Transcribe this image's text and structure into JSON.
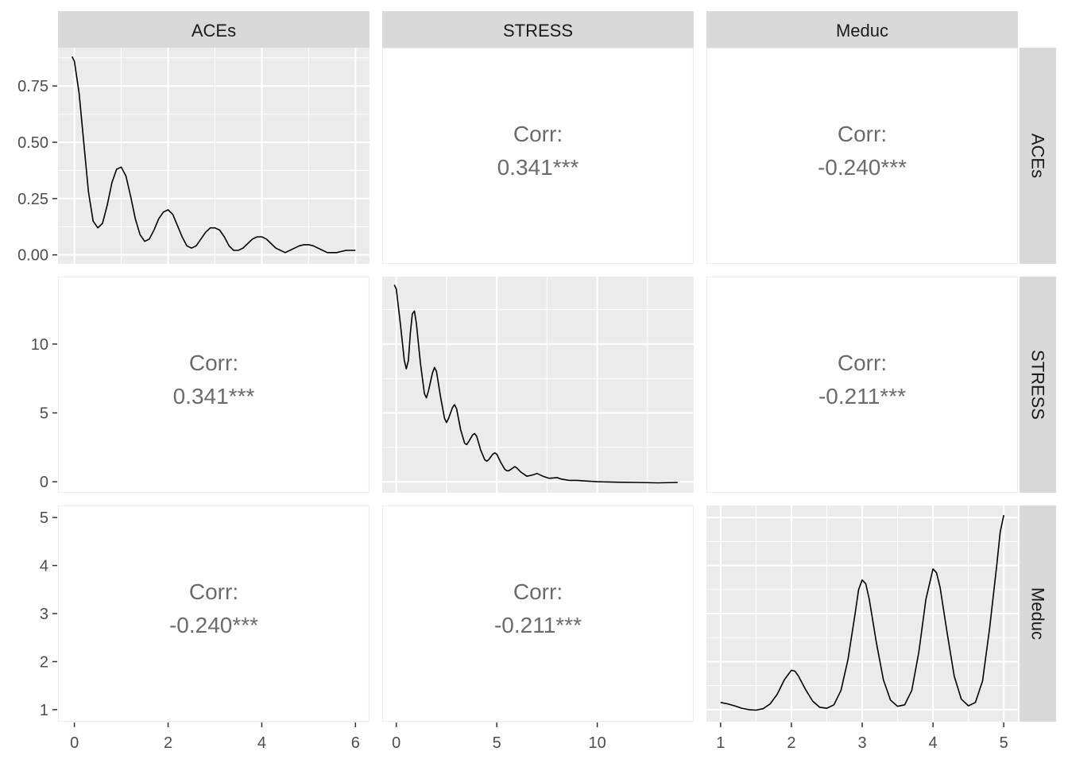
{
  "chart_data": {
    "type": "scatter-matrix",
    "variables": [
      "ACEs",
      "STRESS",
      "Meduc"
    ],
    "colors": {
      "panel_bg": "#ebebeb",
      "grid": "#ffffff",
      "strip_bg": "#d9d9d9",
      "border": "#ebebeb",
      "line": "#000000",
      "corr_text": "#6b6b6b",
      "tick_text": "#4d4d4d"
    },
    "column_strips": [
      "ACEs",
      "STRESS",
      "Meduc"
    ],
    "row_strips": [
      "ACEs",
      "STRESS",
      "Meduc"
    ],
    "x_axes": [
      {
        "ticks": [
          0,
          2,
          4,
          6
        ],
        "labels": [
          "0",
          "2",
          "4",
          "6"
        ],
        "range": [
          -0.35,
          6.3
        ]
      },
      {
        "ticks": [
          0,
          5,
          10
        ],
        "labels": [
          "0",
          "5",
          "10"
        ],
        "range": [
          -0.7,
          14.8
        ]
      },
      {
        "ticks": [
          1,
          2,
          3,
          4,
          5
        ],
        "labels": [
          "1",
          "2",
          "3",
          "4",
          "5"
        ],
        "range": [
          0.8,
          5.2
        ]
      }
    ],
    "y_axes": [
      {
        "ticks": [
          0,
          0.25,
          0.5,
          0.75
        ],
        "labels": [
          "0.00",
          "0.25",
          "0.50",
          "0.75"
        ],
        "range": [
          -0.04,
          0.92
        ]
      },
      {
        "ticks": [
          0,
          5,
          10
        ],
        "labels": [
          "0",
          "5",
          "10"
        ],
        "range": [
          -0.8,
          14.9
        ]
      },
      {
        "ticks": [
          1,
          2,
          3,
          4,
          5
        ],
        "labels": [
          "1",
          "2",
          "3",
          "4",
          "5"
        ],
        "range": [
          0.75,
          5.25
        ]
      }
    ],
    "correlations": [
      {
        "row": 0,
        "col": 1,
        "label": "Corr:",
        "value": "0.341***"
      },
      {
        "row": 0,
        "col": 2,
        "label": "Corr:",
        "value": "-0.240***"
      },
      {
        "row": 1,
        "col": 0,
        "label": "Corr:",
        "value": "0.341***"
      },
      {
        "row": 1,
        "col": 2,
        "label": "Corr:",
        "value": "-0.211***"
      },
      {
        "row": 2,
        "col": 0,
        "label": "Corr:",
        "value": "-0.240***"
      },
      {
        "row": 2,
        "col": 1,
        "label": "Corr:",
        "value": "-0.211***"
      }
    ],
    "densities": [
      {
        "variable": "ACEs",
        "points": [
          [
            -0.05,
            0.88
          ],
          [
            0.0,
            0.86
          ],
          [
            0.1,
            0.72
          ],
          [
            0.2,
            0.5
          ],
          [
            0.3,
            0.28
          ],
          [
            0.4,
            0.15
          ],
          [
            0.5,
            0.12
          ],
          [
            0.6,
            0.14
          ],
          [
            0.7,
            0.22
          ],
          [
            0.8,
            0.32
          ],
          [
            0.9,
            0.38
          ],
          [
            1.0,
            0.39
          ],
          [
            1.1,
            0.35
          ],
          [
            1.2,
            0.26
          ],
          [
            1.3,
            0.16
          ],
          [
            1.4,
            0.09
          ],
          [
            1.5,
            0.06
          ],
          [
            1.6,
            0.07
          ],
          [
            1.7,
            0.11
          ],
          [
            1.8,
            0.16
          ],
          [
            1.9,
            0.19
          ],
          [
            2.0,
            0.2
          ],
          [
            2.1,
            0.18
          ],
          [
            2.2,
            0.13
          ],
          [
            2.3,
            0.08
          ],
          [
            2.4,
            0.04
          ],
          [
            2.5,
            0.03
          ],
          [
            2.6,
            0.04
          ],
          [
            2.7,
            0.07
          ],
          [
            2.8,
            0.1
          ],
          [
            2.9,
            0.12
          ],
          [
            3.0,
            0.12
          ],
          [
            3.1,
            0.11
          ],
          [
            3.2,
            0.08
          ],
          [
            3.3,
            0.04
          ],
          [
            3.4,
            0.02
          ],
          [
            3.5,
            0.02
          ],
          [
            3.6,
            0.03
          ],
          [
            3.7,
            0.05
          ],
          [
            3.8,
            0.07
          ],
          [
            3.9,
            0.08
          ],
          [
            4.0,
            0.08
          ],
          [
            4.1,
            0.07
          ],
          [
            4.2,
            0.05
          ],
          [
            4.3,
            0.03
          ],
          [
            4.4,
            0.02
          ],
          [
            4.5,
            0.01
          ],
          [
            4.6,
            0.02
          ],
          [
            4.7,
            0.03
          ],
          [
            4.8,
            0.04
          ],
          [
            4.9,
            0.045
          ],
          [
            5.0,
            0.045
          ],
          [
            5.1,
            0.04
          ],
          [
            5.2,
            0.03
          ],
          [
            5.3,
            0.02
          ],
          [
            5.4,
            0.01
          ],
          [
            5.5,
            0.01
          ],
          [
            5.6,
            0.01
          ],
          [
            5.7,
            0.015
          ],
          [
            5.8,
            0.02
          ],
          [
            5.9,
            0.02
          ],
          [
            6.0,
            0.02
          ]
        ]
      },
      {
        "variable": "STRESS",
        "points": [
          [
            -0.1,
            14.3
          ],
          [
            0.0,
            14.0
          ],
          [
            0.2,
            11.5
          ],
          [
            0.4,
            8.8
          ],
          [
            0.5,
            8.2
          ],
          [
            0.6,
            8.8
          ],
          [
            0.7,
            10.8
          ],
          [
            0.8,
            12.2
          ],
          [
            0.9,
            12.4
          ],
          [
            1.0,
            11.5
          ],
          [
            1.2,
            8.6
          ],
          [
            1.4,
            6.4
          ],
          [
            1.5,
            6.1
          ],
          [
            1.6,
            6.6
          ],
          [
            1.8,
            7.9
          ],
          [
            1.9,
            8.3
          ],
          [
            2.0,
            8.0
          ],
          [
            2.2,
            6.2
          ],
          [
            2.4,
            4.6
          ],
          [
            2.5,
            4.3
          ],
          [
            2.6,
            4.6
          ],
          [
            2.8,
            5.4
          ],
          [
            2.9,
            5.6
          ],
          [
            3.0,
            5.3
          ],
          [
            3.2,
            3.8
          ],
          [
            3.4,
            2.8
          ],
          [
            3.5,
            2.7
          ],
          [
            3.6,
            2.9
          ],
          [
            3.8,
            3.4
          ],
          [
            3.9,
            3.5
          ],
          [
            4.0,
            3.3
          ],
          [
            4.2,
            2.3
          ],
          [
            4.4,
            1.6
          ],
          [
            4.5,
            1.5
          ],
          [
            4.6,
            1.6
          ],
          [
            4.8,
            2.0
          ],
          [
            4.9,
            2.1
          ],
          [
            5.0,
            2.0
          ],
          [
            5.2,
            1.4
          ],
          [
            5.4,
            0.9
          ],
          [
            5.5,
            0.8
          ],
          [
            5.6,
            0.8
          ],
          [
            5.8,
            1.0
          ],
          [
            5.9,
            1.1
          ],
          [
            6.0,
            1.0
          ],
          [
            6.2,
            0.7
          ],
          [
            6.5,
            0.4
          ],
          [
            6.8,
            0.5
          ],
          [
            7.0,
            0.6
          ],
          [
            7.3,
            0.4
          ],
          [
            7.6,
            0.25
          ],
          [
            8.0,
            0.3
          ],
          [
            8.2,
            0.2
          ],
          [
            8.6,
            0.1
          ],
          [
            9.0,
            0.1
          ],
          [
            9.5,
            0.05
          ],
          [
            10,
            0.0
          ],
          [
            11,
            -0.03
          ],
          [
            12,
            -0.05
          ],
          [
            13,
            -0.08
          ],
          [
            14,
            -0.05
          ]
        ]
      },
      {
        "variable": "Meduc",
        "points": [
          [
            1.0,
            1.15
          ],
          [
            1.1,
            1.12
          ],
          [
            1.2,
            1.08
          ],
          [
            1.3,
            1.03
          ],
          [
            1.4,
            1.0
          ],
          [
            1.5,
            0.99
          ],
          [
            1.6,
            1.02
          ],
          [
            1.7,
            1.12
          ],
          [
            1.8,
            1.32
          ],
          [
            1.9,
            1.62
          ],
          [
            2.0,
            1.82
          ],
          [
            2.05,
            1.8
          ],
          [
            2.1,
            1.7
          ],
          [
            2.2,
            1.42
          ],
          [
            2.3,
            1.18
          ],
          [
            2.4,
            1.05
          ],
          [
            2.5,
            1.03
          ],
          [
            2.6,
            1.1
          ],
          [
            2.7,
            1.4
          ],
          [
            2.8,
            2.05
          ],
          [
            2.9,
            3.0
          ],
          [
            2.95,
            3.5
          ],
          [
            3.0,
            3.7
          ],
          [
            3.05,
            3.62
          ],
          [
            3.1,
            3.3
          ],
          [
            3.2,
            2.4
          ],
          [
            3.3,
            1.62
          ],
          [
            3.4,
            1.2
          ],
          [
            3.5,
            1.07
          ],
          [
            3.6,
            1.1
          ],
          [
            3.7,
            1.4
          ],
          [
            3.8,
            2.2
          ],
          [
            3.9,
            3.3
          ],
          [
            4.0,
            3.93
          ],
          [
            4.05,
            3.85
          ],
          [
            4.1,
            3.55
          ],
          [
            4.2,
            2.6
          ],
          [
            4.3,
            1.7
          ],
          [
            4.4,
            1.22
          ],
          [
            4.5,
            1.08
          ],
          [
            4.6,
            1.15
          ],
          [
            4.7,
            1.6
          ],
          [
            4.8,
            2.7
          ],
          [
            4.9,
            4.0
          ],
          [
            4.95,
            4.7
          ],
          [
            5.0,
            5.05
          ]
        ]
      }
    ]
  }
}
